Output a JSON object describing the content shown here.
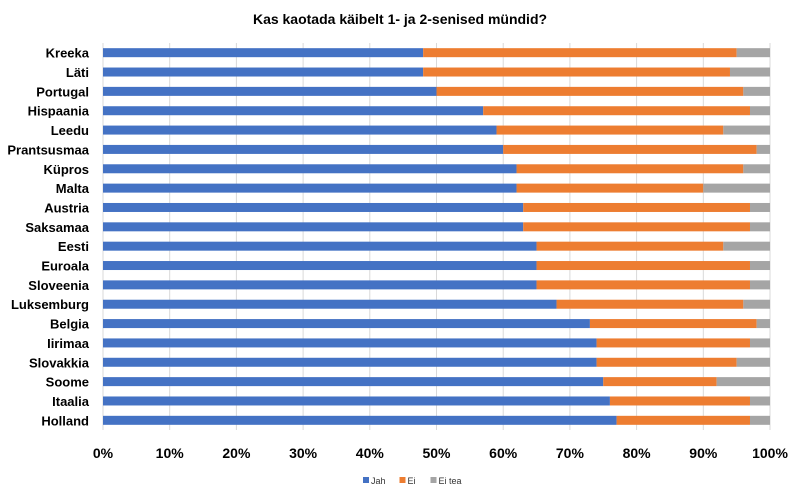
{
  "chart_data": {
    "type": "bar",
    "orientation": "horizontal",
    "stacked": "100%",
    "title": "Kas kaotada käibelt  1- ja 2-senised mündid?",
    "categories": [
      "Kreeka",
      "Läti",
      "Portugal",
      "Hispaania",
      "Leedu",
      "Prantsusmaa",
      "Küpros",
      "Malta",
      "Austria",
      "Saksamaa",
      "Eesti",
      "Euroala",
      "Sloveenia",
      "Luksemburg",
      "Belgia",
      "Iirimaa",
      "Slovakkia",
      "Soome",
      "Itaalia",
      "Holland"
    ],
    "series": [
      {
        "name": "Jah",
        "color": "#4472C4",
        "values": [
          48,
          48,
          50,
          57,
          59,
          60,
          62,
          62,
          63,
          63,
          65,
          65,
          65,
          68,
          73,
          74,
          74,
          75,
          76,
          77
        ]
      },
      {
        "name": "Ei",
        "color": "#ED7D31",
        "values": [
          47,
          46,
          46,
          40,
          34,
          38,
          34,
          28,
          34,
          34,
          28,
          32,
          32,
          28,
          25,
          23,
          21,
          17,
          21,
          20
        ]
      },
      {
        "name": "Ei tea",
        "color": "#A5A5A5",
        "values": [
          5,
          6,
          4,
          3,
          7,
          2,
          4,
          10,
          3,
          3,
          7,
          3,
          3,
          4,
          2,
          3,
          5,
          8,
          3,
          3
        ]
      }
    ],
    "xlim": [
      0,
      100
    ],
    "xticks": [
      "0%",
      "10%",
      "20%",
      "30%",
      "40%",
      "50%",
      "60%",
      "70%",
      "80%",
      "90%",
      "100%"
    ],
    "grid": true,
    "legend": "bottom"
  }
}
